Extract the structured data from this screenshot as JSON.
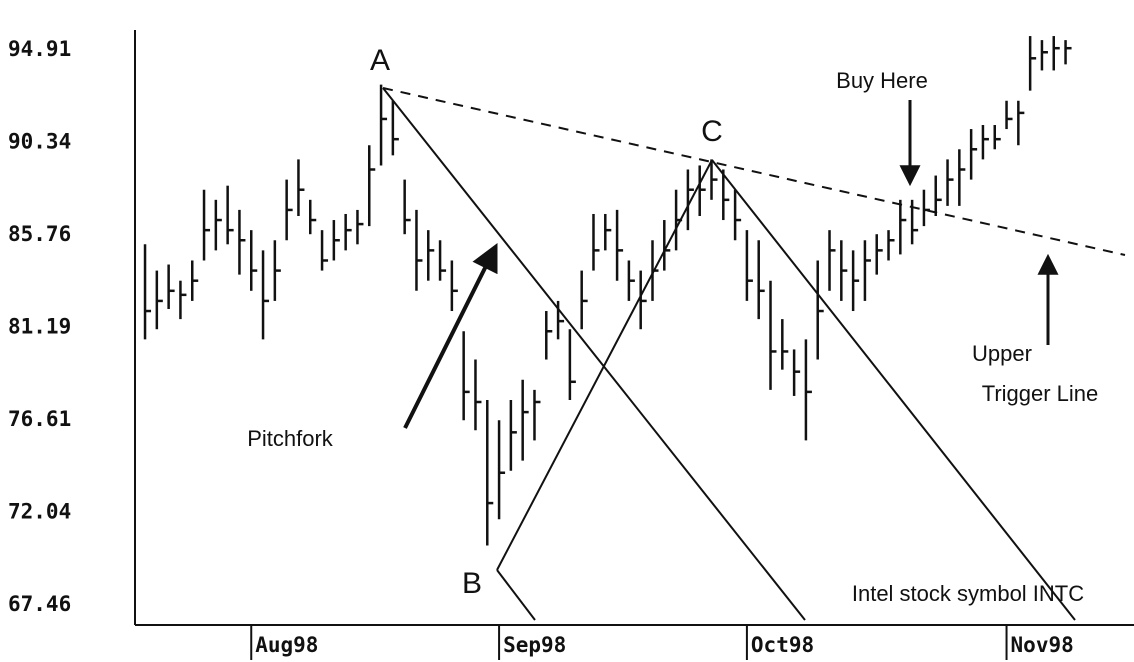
{
  "chart_data": {
    "type": "hlc",
    "annotations": {
      "a": "A",
      "b": "B",
      "c": "C",
      "buy": "Buy Here",
      "pitchfork": "Pitchfork",
      "upper": "Upper",
      "trigger": "Trigger Line",
      "symbol": "Intel stock symbol INTC"
    },
    "x": [
      0,
      1,
      2,
      3,
      4,
      5,
      6,
      7,
      8,
      9,
      10,
      11,
      12,
      13,
      14,
      15,
      16,
      17,
      18,
      19,
      20,
      21,
      22,
      23,
      24,
      25,
      26,
      27,
      28,
      29,
      30,
      31,
      32,
      33,
      34,
      35,
      36,
      37,
      38,
      39,
      40,
      41,
      42,
      43,
      44,
      45,
      46,
      47,
      48,
      49,
      50,
      51,
      52,
      53,
      54,
      55,
      56,
      57,
      58,
      59,
      60,
      61,
      62,
      63,
      64,
      65,
      66,
      67,
      68,
      69,
      70,
      71,
      72,
      73,
      74,
      75,
      76,
      77,
      78
    ],
    "high": [
      85.3,
      84.0,
      84.3,
      83.5,
      84.5,
      88,
      87.5,
      88.2,
      87,
      86,
      85,
      85.5,
      88.5,
      89.5,
      87.5,
      86,
      86.5,
      86.8,
      87,
      90.2,
      93.2,
      92.4,
      88.5,
      87,
      86,
      85.5,
      84.5,
      81,
      79.6,
      77.6,
      76.6,
      77.6,
      78.6,
      78.1,
      82,
      82.5,
      81.1,
      84,
      86.8,
      86.8,
      87,
      84.5,
      84,
      85.5,
      86.5,
      88,
      89,
      89.2,
      89.5,
      89,
      88,
      86,
      85.5,
      83.5,
      81.6,
      80.1,
      80.6,
      84.5,
      86,
      85.5,
      85,
      85.5,
      85.8,
      86,
      87.5,
      87.5,
      88,
      88.7,
      89.5,
      90,
      91,
      91.2,
      91.2,
      92.4,
      92.4,
      95.6,
      95.4,
      95.6,
      95.4
    ],
    "low": [
      80.6,
      81.1,
      82.1,
      81.6,
      82.5,
      84.5,
      85,
      85.3,
      83.8,
      83,
      80.6,
      82.5,
      85.5,
      86.7,
      85.8,
      84,
      84.5,
      85,
      85.3,
      86.2,
      89.2,
      89.7,
      85.8,
      83,
      83.5,
      83.5,
      82,
      76.6,
      76.1,
      70.4,
      71.7,
      74.1,
      74.6,
      75.6,
      79.6,
      80.6,
      77.6,
      81.1,
      84,
      85,
      83.5,
      82.5,
      81.1,
      82.5,
      84,
      85,
      86,
      86.7,
      87.5,
      86.5,
      85.5,
      82.5,
      81.6,
      78.1,
      79.1,
      77.8,
      75.6,
      79.6,
      83,
      82.5,
      82,
      82.5,
      83.8,
      84.5,
      84.8,
      85.3,
      86.2,
      86.7,
      87.2,
      87.2,
      88.5,
      89.5,
      90,
      91,
      90.2,
      92.9,
      93.9,
      93.9,
      94.2
    ],
    "close": [
      82,
      82.5,
      83,
      82.8,
      83.5,
      86,
      86.5,
      86,
      85.5,
      84,
      82.5,
      84,
      87,
      88,
      86.5,
      84.5,
      85.5,
      86,
      86.3,
      89,
      91.5,
      90.5,
      86.5,
      84.5,
      85,
      84,
      83,
      78,
      77.5,
      72.5,
      74,
      76,
      77,
      77.5,
      81,
      81.5,
      78.5,
      82.5,
      85,
      86,
      85,
      83.5,
      82.5,
      84,
      85,
      86.5,
      88,
      88,
      88.5,
      87.5,
      86.5,
      83.5,
      83,
      80,
      80,
      79,
      78,
      82,
      85,
      84,
      83.5,
      84.5,
      85,
      85.5,
      86.5,
      86,
      87,
      87.5,
      88.5,
      89,
      90,
      90.5,
      90.5,
      91.5,
      91.8,
      94.5,
      94.8,
      95,
      95
    ],
    "color": "#111111",
    "xlim": [
      -0.85,
      83.8
    ],
    "xticks": [
      {
        "value": 9,
        "label": "Aug98"
      },
      {
        "value": 30,
        "label": "Sep98"
      },
      {
        "value": 51,
        "label": "Oct98"
      },
      {
        "value": 73,
        "label": "Nov98"
      }
    ],
    "ylim": [
      66.47,
      95.9
    ],
    "yticks": [
      94.91,
      90.34,
      85.76,
      81.19,
      76.61,
      72.04,
      67.46
    ],
    "grid": false
  }
}
